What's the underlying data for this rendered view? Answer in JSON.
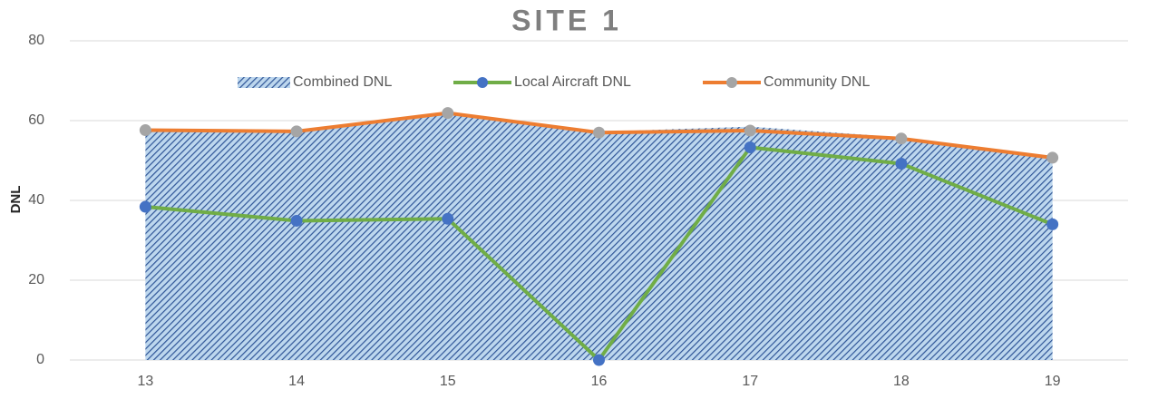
{
  "chart_data": {
    "type": "line",
    "title": "SITE 1",
    "y_label": "DNL",
    "categories": [
      "13",
      "14",
      "15",
      "16",
      "17",
      "18",
      "19"
    ],
    "series": [
      {
        "name": "Combined DNL",
        "type": "area",
        "color": "#2f5597",
        "fill": "#bdd7ee",
        "values": [
          57.8,
          57.5,
          61.8,
          57.2,
          58.5,
          55.8,
          51.0
        ]
      },
      {
        "name": "Local Aircraft DNL",
        "type": "line",
        "color": "#70ad47",
        "marker_color": "#4472c4",
        "values": [
          38.4,
          34.9,
          35.4,
          0,
          53.3,
          49.2,
          34.0
        ]
      },
      {
        "name": "Community DNL",
        "type": "line",
        "color": "#ed7d31",
        "marker_color": "#a5a5a5",
        "values": [
          57.6,
          57.3,
          61.9,
          57.0,
          57.5,
          55.5,
          50.7
        ]
      }
    ],
    "ylim": [
      0,
      80
    ],
    "yticks": [
      0,
      20,
      40,
      60,
      80
    ],
    "grid": true,
    "legend": "top"
  }
}
